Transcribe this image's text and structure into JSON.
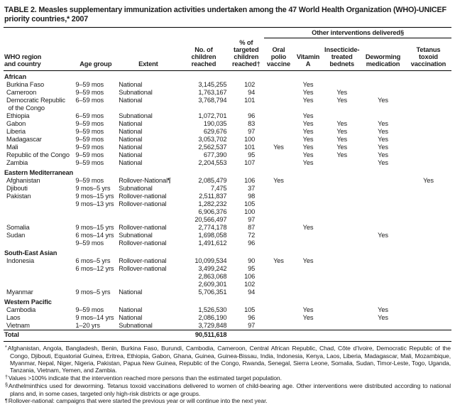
{
  "title": "TABLE 2. Measles supplementary immunization activities undertaken among the 47 World Health Organization (WHO)-UNICEF priority countries,* 2007",
  "table": {
    "interventions_header": "Other interventions delivered§",
    "column_keys": [
      "country",
      "age-group",
      "extent",
      "children-reached",
      "pct-targeted-reached",
      "oral-polio-vaccine",
      "vitamin-a",
      "bednets",
      "deworming",
      "tetanus-toxoid"
    ],
    "columns": [
      "WHO region\n and country",
      "Age group",
      "Extent",
      "No. of\nchildren\nreached",
      "% of\ntargeted\nchildren\nreached†",
      "Oral\npolio\nvaccine",
      "Vitamin\nA",
      "Insecticide-\ntreated\nbednets",
      "Deworming\nmedication",
      "Tetanus\ntoxoid\nvaccination"
    ],
    "sections": [
      {
        "name": "African",
        "rows": [
          [
            "Burkina Faso",
            "9–59 mos",
            "National",
            "3,145,255",
            "102",
            "",
            "Yes",
            "",
            "",
            ""
          ],
          [
            "Cameroon",
            "9–59 mos",
            "Subnational",
            "1,763,167",
            "94",
            "",
            "Yes",
            "Yes",
            "",
            ""
          ],
          [
            "Democratic Republic\n of the Congo",
            "6–59 mos",
            "National",
            "3,768,794",
            "101",
            "",
            "Yes",
            "Yes",
            "Yes",
            ""
          ],
          [
            "Ethiopia",
            "6–59 mos",
            "Subnational",
            "1,072,701",
            "96",
            "",
            "Yes",
            "",
            "",
            ""
          ],
          [
            "Gabon",
            "9–59 mos",
            "National",
            "190,035",
            "83",
            "",
            "Yes",
            "Yes",
            "Yes",
            ""
          ],
          [
            "Liberia",
            "9–59 mos",
            "National",
            "629,676",
            "97",
            "",
            "Yes",
            "Yes",
            "Yes",
            ""
          ],
          [
            "Madagascar",
            "9–59 mos",
            "National",
            "3,053,702",
            "100",
            "",
            "Yes",
            "Yes",
            "Yes",
            ""
          ],
          [
            "Mali",
            "9–59 mos",
            "National",
            "2,562,537",
            "101",
            "Yes",
            "Yes",
            "Yes",
            "Yes",
            ""
          ],
          [
            "Republic of the Congo",
            "9–59 mos",
            "National",
            "677,390",
            "95",
            "",
            "Yes",
            "Yes",
            "Yes",
            ""
          ],
          [
            "Zambia",
            "9–59 mos",
            "National",
            "2,204,553",
            "107",
            "",
            "Yes",
            "",
            "Yes",
            ""
          ]
        ]
      },
      {
        "name": "Eastern Mediterranean",
        "rows": [
          [
            "Afghanistan",
            "9–59 mos",
            "Rollover-National¶",
            "2,085,479",
            "106",
            "Yes",
            "",
            "",
            "",
            "Yes"
          ],
          [
            "Djibouti",
            "9 mos–5 yrs",
            "Subnational",
            "7,475",
            "37",
            "",
            "",
            "",
            "",
            ""
          ],
          [
            "Pakistan",
            "9 mos–15 yrs",
            "Rollover-national",
            "2,511,837",
            "98",
            "",
            "",
            "",
            "",
            ""
          ],
          [
            "",
            "9 mos–13 yrs",
            "Rollover-national",
            "1,282,232",
            "105",
            "",
            "",
            "",
            "",
            ""
          ],
          [
            "",
            "",
            "",
            "6,906,376",
            "100",
            "",
            "",
            "",
            "",
            ""
          ],
          [
            "",
            "",
            "",
            "20,566,497",
            "97",
            "",
            "",
            "",
            "",
            ""
          ],
          [
            "Somalia",
            "9 mos–15 yrs",
            "Rollover-national",
            "2,774,178",
            "87",
            "",
            "Yes",
            "",
            "",
            ""
          ],
          [
            "Sudan",
            "6 mos–14 yrs",
            "Subnational",
            "1,698,058",
            "72",
            "",
            "",
            "",
            "Yes",
            ""
          ],
          [
            "",
            "9–59 mos",
            "Rollover-national",
            "1,491,612",
            "96",
            "",
            "",
            "",
            "",
            ""
          ]
        ]
      },
      {
        "name": "South-East Asian",
        "rows": [
          [
            "Indonesia",
            "6 mos–5 yrs",
            "Rollover-national",
            "10,099,534",
            "90",
            "Yes",
            "Yes",
            "",
            "",
            ""
          ],
          [
            "",
            "6 mos–12 yrs",
            "Rollover-national",
            "3,499,242",
            "95",
            "",
            "",
            "",
            "",
            ""
          ],
          [
            "",
            "",
            "",
            "2,863,068",
            "106",
            "",
            "",
            "",
            "",
            ""
          ],
          [
            "",
            "",
            "",
            "2,609,301",
            "102",
            "",
            "",
            "",
            "",
            ""
          ],
          [
            "Myanmar",
            "9 mos–5 yrs",
            "National",
            "5,706,351",
            "94",
            "",
            "",
            "",
            "",
            ""
          ]
        ]
      },
      {
        "name": "Western Pacific",
        "rows": [
          [
            "Cambodia",
            "9–59 mos",
            "National",
            "1,526,530",
            "105",
            "",
            "Yes",
            "",
            "Yes",
            ""
          ],
          [
            "Laos",
            "9 mos–14 yrs",
            "National",
            "2,086,190",
            "96",
            "",
            "Yes",
            "",
            "Yes",
            ""
          ],
          [
            "Vietnam",
            "1–20 yrs",
            "Subnational",
            "3,729,848",
            "97",
            "",
            "",
            "",
            "",
            ""
          ]
        ]
      }
    ],
    "total": {
      "label": "Total",
      "children_reached": "90,511,618"
    }
  },
  "footnotes": [
    {
      "marker": "*",
      "text": "Afghanistan, Angola, Bangladesh, Benin, Burkina Faso, Burundi, Cambodia, Cameroon, Central African Republic, Chad, Côte d’Ivoire, Democratic Republic of the Congo, Djibouti, Equatorial Guinea, Eritrea, Ethiopia, Gabon, Ghana, Guinea, Guinea-Bissau, India, Indonesia, Kenya, Laos, Liberia, Madagascar, Mali, Mozambique, Myanmar, Nepal, Niger, Nigeria, Pakistan, Papua New Guinea, Republic of the Congo, Rwanda, Senegal, Sierra Leone, Somalia, Sudan, Timor-Leste, Togo, Uganda, Tanzania, Vietnam, Yemen, and Zambia."
    },
    {
      "marker": "†",
      "text": "Values >100% indicate that the intervention reached more persons than the estimated target population."
    },
    {
      "marker": "§",
      "text": "Anthelminthics used for deworming. Tetanus toxoid vaccinations delivered to women of child-bearing age. Other interventions were distributed according to national plans and, in some cases, targeted only high-risk districts or age groups."
    },
    {
      "marker": "¶",
      "text": "Rollover-national: campaigns that were started the previous year or will continue into the next year."
    }
  ]
}
